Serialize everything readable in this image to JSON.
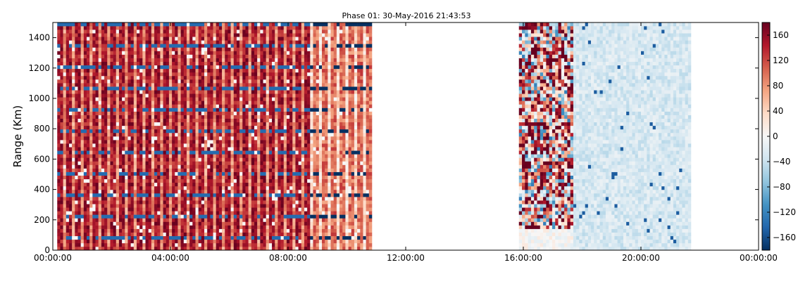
{
  "chart_data": {
    "type": "heatmap",
    "title": "Phase 01: 30-May-2016 21:43:53",
    "xlabel": "",
    "ylabel": "Range (Km)",
    "x_ticks": [
      "00:00:00",
      "04:00:00",
      "08:00:00",
      "12:00:00",
      "16:00:00",
      "20:00:00",
      "00:00:00"
    ],
    "x_range_hours": [
      0,
      24
    ],
    "y_ticks": [
      0,
      200,
      400,
      600,
      800,
      1000,
      1200,
      1400
    ],
    "ylim": [
      0,
      1500
    ],
    "colorbar": {
      "colormap": "RdBu_r",
      "range": [
        -180,
        180
      ],
      "ticks": [
        -160,
        -120,
        -80,
        -40,
        0,
        40,
        80,
        120,
        160
      ]
    },
    "data_segments": [
      {
        "start_hour": 0.15,
        "end_hour": 10.85,
        "description_level": "high",
        "phase_approx": 150
      },
      {
        "start_hour": 15.85,
        "end_hour": 17.7,
        "description_level": "mixed",
        "phase_approx": 60
      },
      {
        "start_hour": 17.7,
        "end_hour": 21.7,
        "description_level": "low",
        "phase_approx": -30
      }
    ],
    "grid": false
  }
}
